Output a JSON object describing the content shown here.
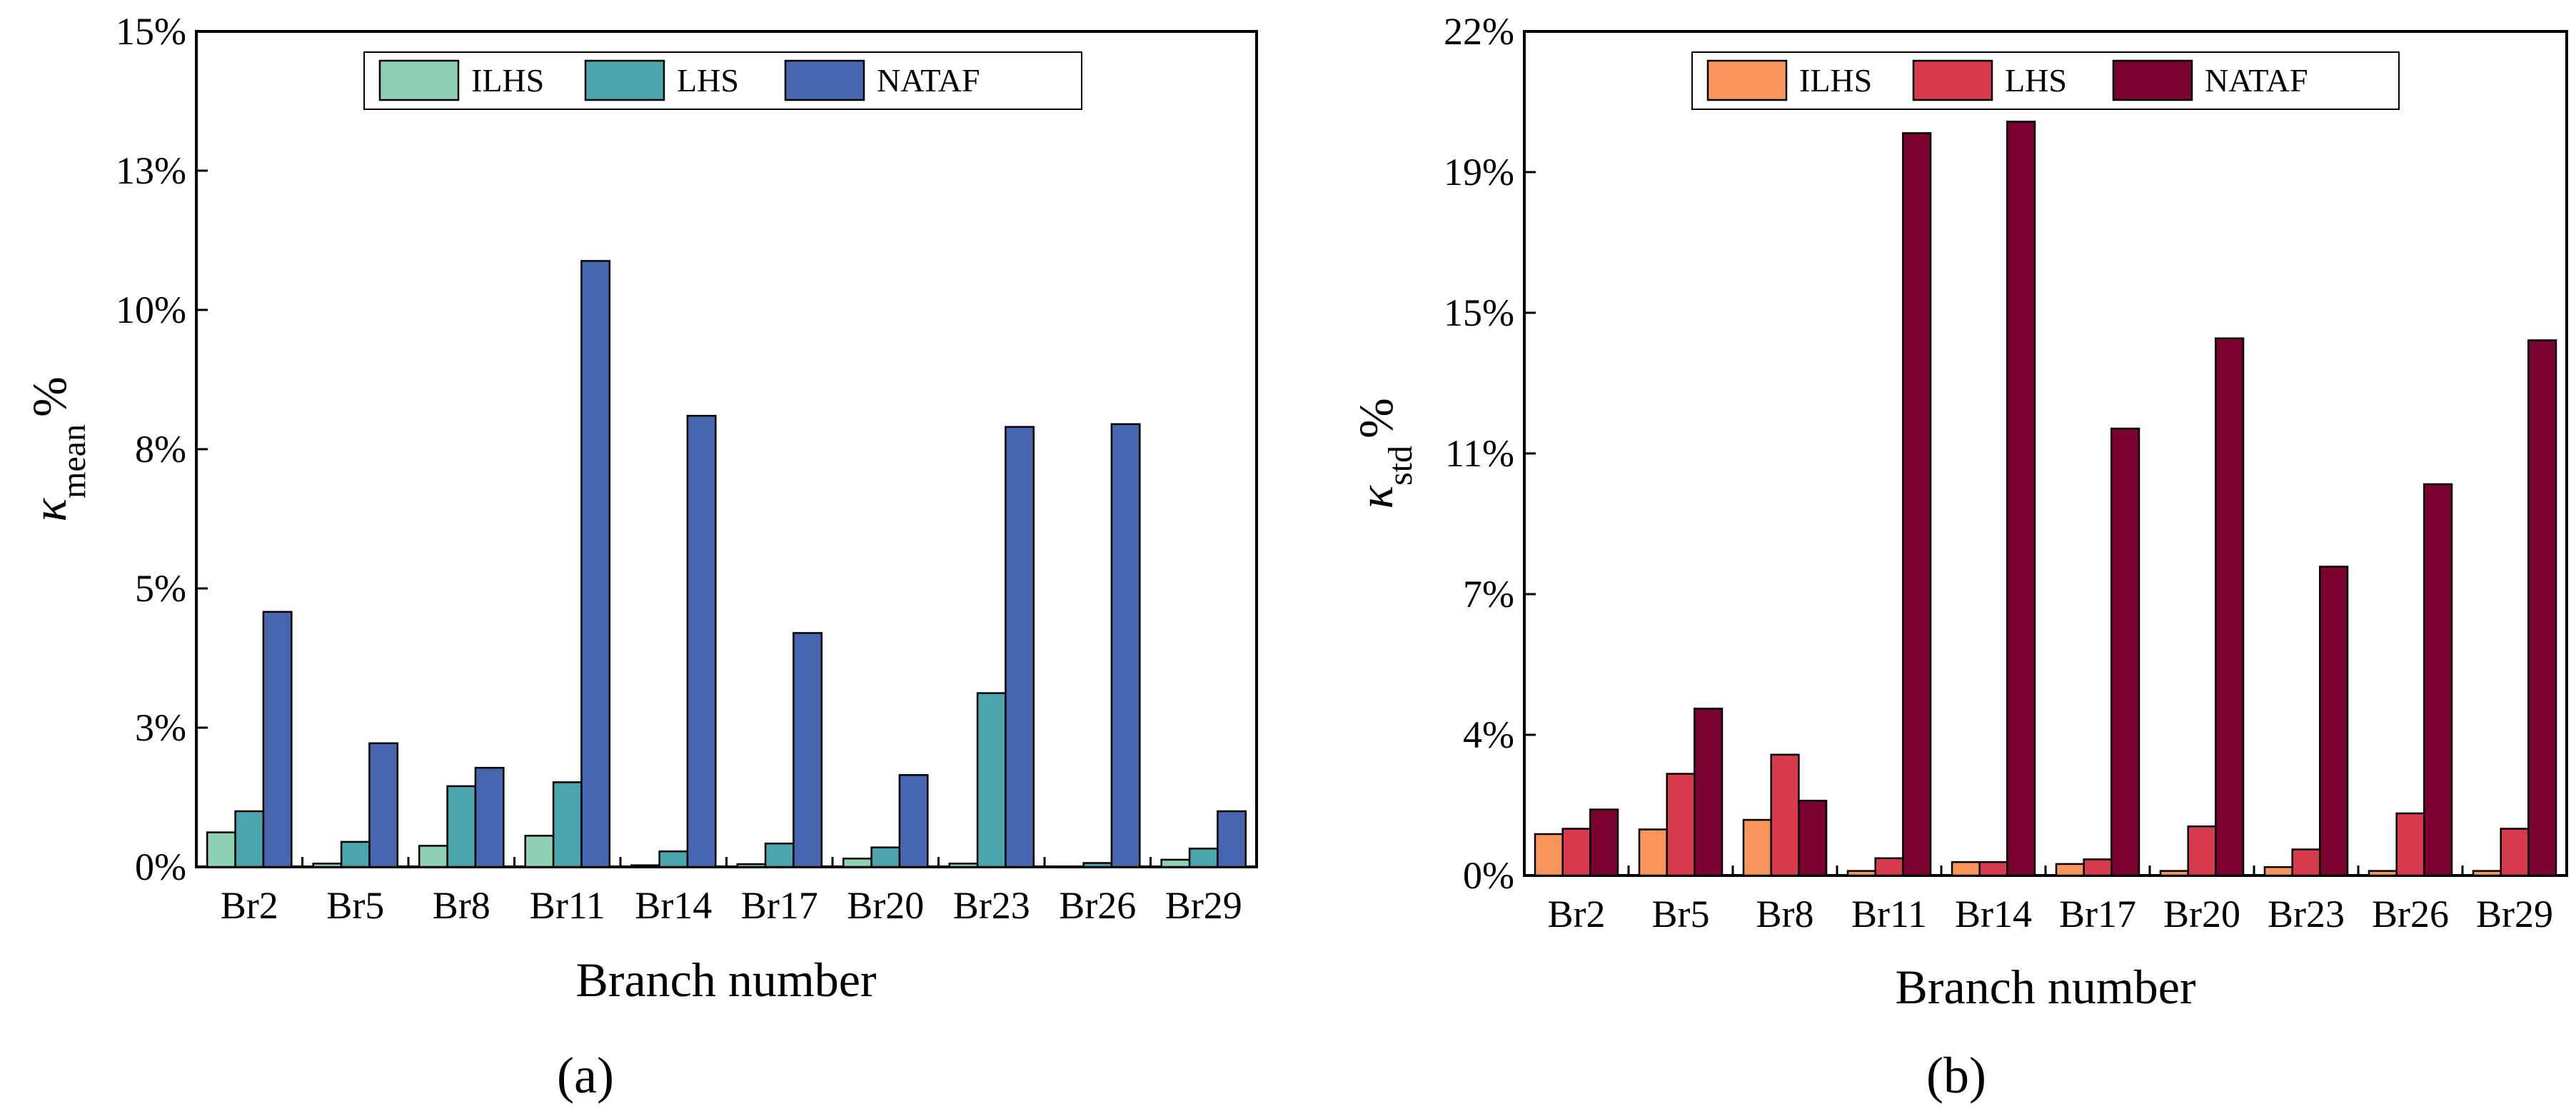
{
  "chart_data": [
    {
      "type": "bar",
      "panel_label": "(a)",
      "xlabel": "Branch number",
      "ylabel": {
        "symbol": "κ",
        "subscript": "mean",
        "suffix": "%"
      },
      "ylim": [
        0,
        15
      ],
      "yticks": [
        "0%",
        "3%",
        "5%",
        "8%",
        "10%",
        "13%",
        "15%"
      ],
      "categories": [
        "Br2",
        "Br5",
        "Br8",
        "Br11",
        "Br14",
        "Br17",
        "Br20",
        "Br23",
        "Br26",
        "Br29"
      ],
      "series": [
        {
          "name": "ILHS",
          "color": "#8ed1b4",
          "values": [
            0.62,
            0.06,
            0.38,
            0.56,
            0.03,
            0.05,
            0.15,
            0.06,
            0.0,
            0.13
          ]
        },
        {
          "name": "LHS",
          "color": "#4aa5ad",
          "values": [
            1.0,
            0.45,
            1.45,
            1.52,
            0.28,
            0.42,
            0.35,
            3.12,
            0.07,
            0.33
          ]
        },
        {
          "name": "NATAF",
          "color": "#4766b0",
          "values": [
            4.58,
            2.22,
            1.78,
            10.88,
            8.1,
            4.2,
            1.65,
            7.9,
            7.95,
            1.0
          ]
        }
      ]
    },
    {
      "type": "bar",
      "panel_label": "(b)",
      "xlabel": "Branch number",
      "ylabel": {
        "symbol": "κ",
        "subscript": "std",
        "suffix": "%"
      },
      "ylim": [
        0,
        22
      ],
      "yticks": [
        "0%",
        "4%",
        "7%",
        "11%",
        "15%",
        "19%",
        "22%"
      ],
      "categories": [
        "Br2",
        "Br5",
        "Br8",
        "Br11",
        "Br14",
        "Br17",
        "Br20",
        "Br23",
        "Br26",
        "Br29"
      ],
      "series": [
        {
          "name": "ILHS",
          "color": "#f9955a",
          "values": [
            1.08,
            1.2,
            1.45,
            0.12,
            0.35,
            0.3,
            0.12,
            0.22,
            0.12,
            0.12
          ]
        },
        {
          "name": "LHS",
          "color": "#d63a4c",
          "values": [
            1.22,
            2.65,
            3.15,
            0.45,
            0.35,
            0.42,
            1.28,
            0.68,
            1.62,
            1.22
          ]
        },
        {
          "name": "NATAF",
          "color": "#7b0230",
          "values": [
            1.72,
            4.35,
            1.95,
            19.35,
            19.65,
            11.65,
            14.0,
            8.05,
            10.2,
            13.95
          ]
        }
      ]
    }
  ]
}
